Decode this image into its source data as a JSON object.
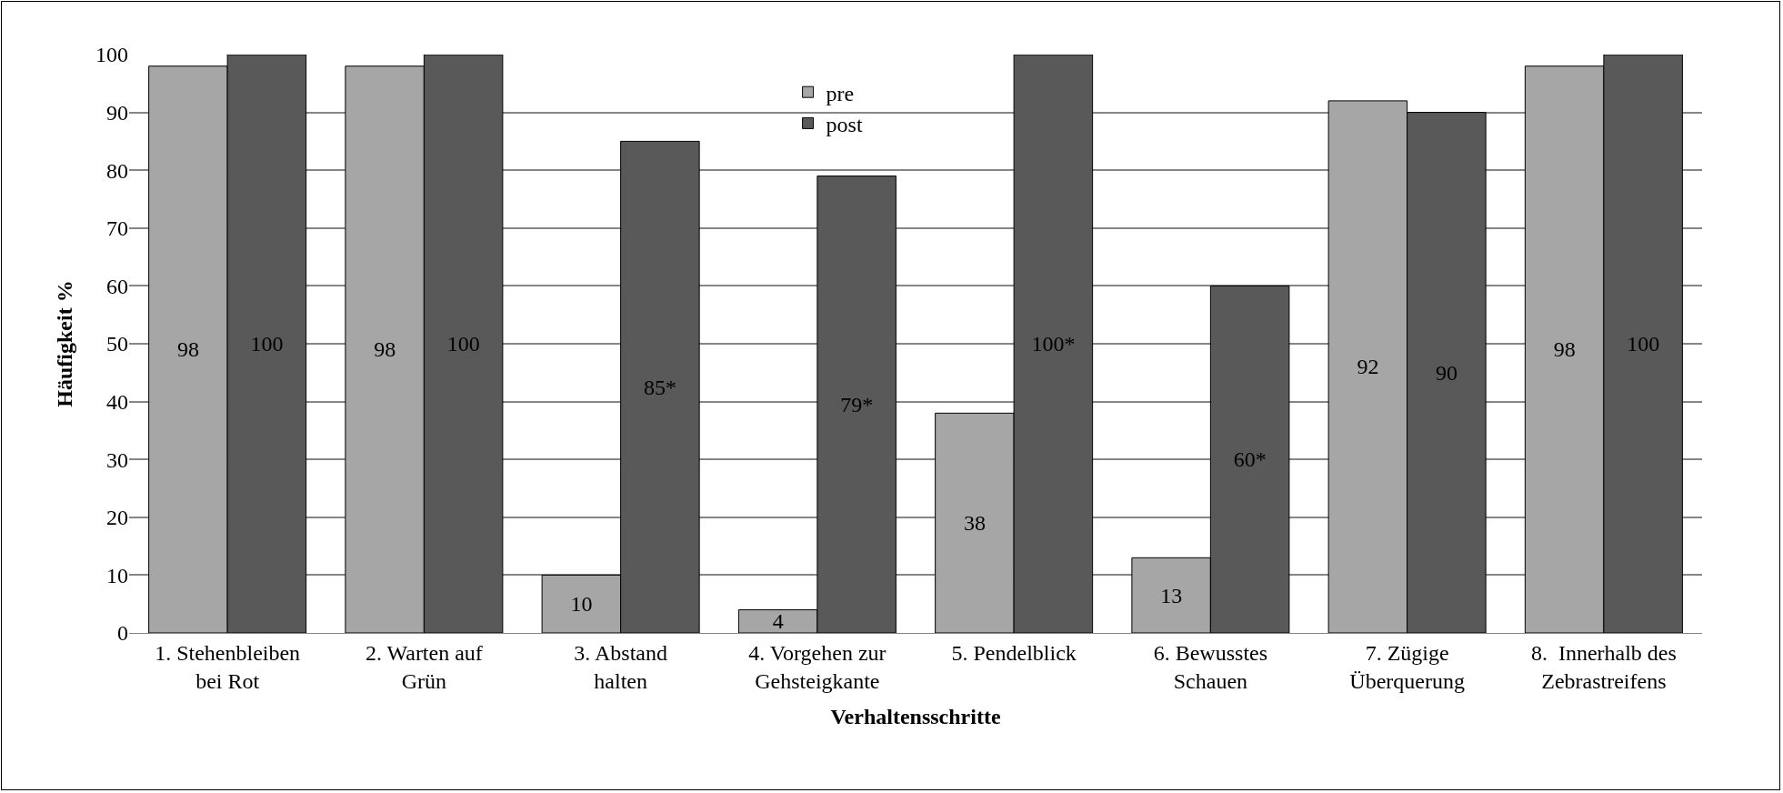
{
  "chart_data": {
    "type": "bar",
    "xlabel": "Verhaltensschritte",
    "ylabel": "Häufigkeit %",
    "categories": [
      "1. Stehenbleiben bei Rot",
      "2. Warten auf Grün",
      "3. Abstand halten",
      "4. Vorgehen zur Gehsteigkante",
      "5. Pendelblick",
      "6. Bewusstes Schauen",
      "7. Zügige Überquerung",
      "8.  Innerhalb des Zebrastreifens"
    ],
    "series": [
      {
        "name": "pre",
        "color": "#a6a6a6",
        "values": [
          98,
          98,
          10,
          4,
          38,
          13,
          92,
          98
        ],
        "value_labels": [
          "98",
          "98",
          "10",
          "4",
          "38",
          "13",
          "92",
          "98"
        ]
      },
      {
        "name": "post",
        "color": "#595959",
        "values": [
          100,
          100,
          85,
          79,
          100,
          60,
          90,
          100
        ],
        "value_labels": [
          "100",
          "100",
          "85*",
          "79*",
          "100*",
          "60*",
          "90",
          "100"
        ]
      }
    ],
    "ylim": [
      0,
      100
    ],
    "yticks": [
      0,
      10,
      20,
      30,
      40,
      50,
      60,
      70,
      80,
      90,
      100
    ],
    "grid": "y",
    "legend": "top"
  }
}
